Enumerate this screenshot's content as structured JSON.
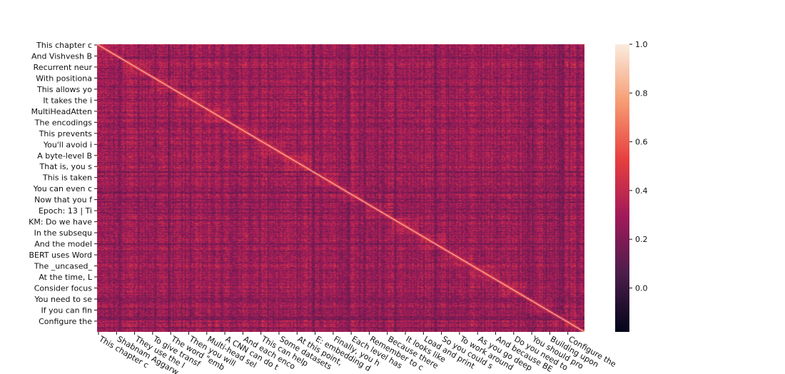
{
  "chart_data": {
    "type": "heatmap",
    "title": "",
    "xlabel": "",
    "ylabel": "",
    "n_rows": 400,
    "n_cols": 400,
    "diagonal_value": 1.0,
    "value_range": [
      -0.18,
      1.0
    ],
    "typical_offdiagonal_range": [
      -0.1,
      0.5
    ],
    "colormap": "rocket",
    "colormap_stops": [
      "#03051a",
      "#4c1d4b",
      "#a11a5b",
      "#e83f3f",
      "#f69c73",
      "#faebdd"
    ],
    "row_tick_labels": [
      "This chapter c",
      "And Vishvesh B",
      "Recurrent neur",
      "With positiona",
      "This allows yo",
      "It takes the i",
      "MultiHeadAtten",
      "The encodings ",
      "This prevents ",
      "You'll avoid i",
      "A byte-level B",
      "That is, you s",
      "This is taken ",
      "You can even c",
      "Now that you f",
      "Epoch: 13 | Ti",
      "KM: Do we have",
      "In the subsequ",
      "And the model ",
      "BERT uses Word",
      "The _uncased_ ",
      "At the time, L",
      "Consider focus",
      "You need to se",
      "If you can fin",
      "Configure the "
    ],
    "col_tick_labels": [
      "This chapter c",
      "Shabnam Aggarw",
      "They use the l",
      "To give transf",
      "The word \"emb",
      "Then you will ",
      "Multi-head sel",
      "A CNN can do t",
      "And each enco",
      "This can help ",
      "Some datasets",
      "At this point, ",
      "E: embedding d",
      "Finally, you h",
      "Each level has ",
      "Remember to c",
      "Because there ",
      "It looks like ",
      "Load and print",
      "So you could s",
      "To work around",
      "As you go deep",
      "And because BE",
      "Do you need to",
      "You should pro",
      "Building upon ",
      "Configure the "
    ],
    "colorbar": {
      "ticks": [
        0.0,
        0.2,
        0.4,
        0.6,
        0.8,
        1.0
      ],
      "tick_labels": [
        "0.0",
        "0.2",
        "0.4",
        "0.6",
        "0.8",
        "1.0"
      ]
    }
  }
}
